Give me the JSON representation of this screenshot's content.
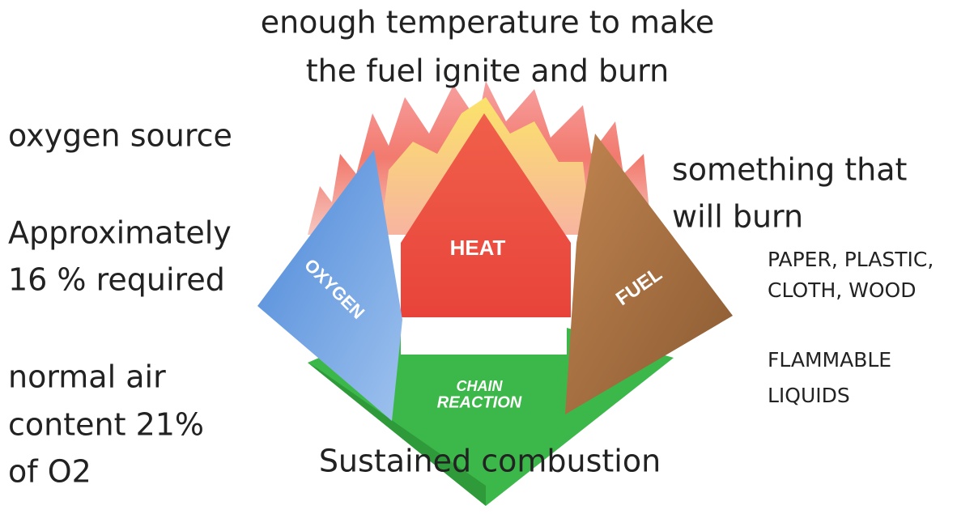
{
  "heat": {
    "label": "HEAT",
    "note": [
      "enough temperature to make",
      "the fuel ignite and burn"
    ]
  },
  "oxygen": {
    "label": "OXYGEN",
    "notes": [
      [
        "oxygen source"
      ],
      [
        "Approximately",
        "16 % required"
      ],
      [
        "normal air",
        "content 21%",
        "of O2"
      ]
    ]
  },
  "fuel": {
    "label": "FUEL",
    "notes": [
      [
        "something that",
        "will burn"
      ],
      [
        "PAPER, PLASTIC,",
        "CLOTH, WOOD"
      ],
      [
        "FLAMMABLE",
        "LIQUIDS"
      ]
    ]
  },
  "chain_reaction": {
    "label": [
      "CHAIN",
      "REACTION"
    ],
    "note": "Sustained combustion"
  }
}
